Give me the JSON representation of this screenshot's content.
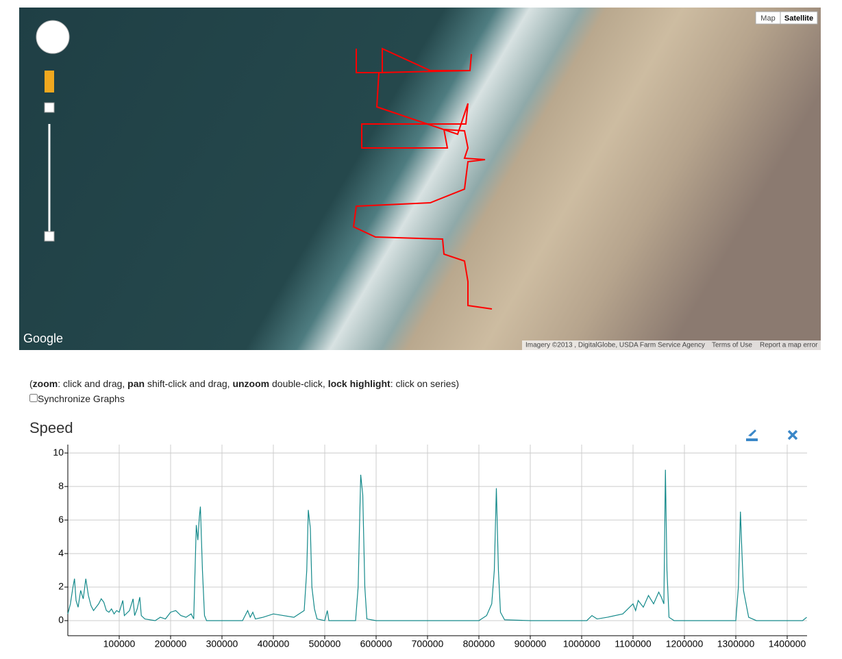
{
  "map": {
    "buttons": [
      "Map",
      "Satellite"
    ],
    "logo": "Google",
    "attribution": "Imagery ©2013 , DigitalGlobe, USDA Farm Service Agency",
    "links": [
      "Terms of Use",
      "Report a map error"
    ]
  },
  "instructions": [
    {
      "text": "(",
      "bold": false
    },
    {
      "text": "zoom",
      "bold": true
    },
    {
      "text": ": click and drag, ",
      "bold": false
    },
    {
      "text": "pan",
      "bold": true
    },
    {
      "text": " shift-click and drag, ",
      "bold": false
    },
    {
      "text": "unzoom",
      "bold": true
    },
    {
      "text": " double-click, ",
      "bold": false
    },
    {
      "text": "lock highlight",
      "bold": true
    },
    {
      "text": ": click on series)",
      "bold": false
    }
  ],
  "sync_label": "Synchronize Graphs",
  "chart_data": {
    "type": "line",
    "title": "Speed",
    "color": "#13898a",
    "grid": true,
    "x": [
      0,
      5000,
      10000,
      13000,
      16000,
      20000,
      25000,
      30000,
      35000,
      40000,
      45000,
      50000,
      55000,
      60000,
      65000,
      70000,
      75000,
      80000,
      85000,
      90000,
      95000,
      100000,
      107000,
      110000,
      120000,
      127000,
      130000,
      135000,
      140000,
      143000,
      150000,
      170000,
      180000,
      190000,
      200000,
      210000,
      220000,
      230000,
      240000,
      245000,
      250000,
      253000,
      256000,
      258000,
      262000,
      266000,
      270000,
      340000,
      350000,
      355000,
      360000,
      365000,
      380000,
      400000,
      440000,
      460000,
      465000,
      468000,
      472000,
      475000,
      480000,
      485000,
      500000,
      505000,
      508000,
      560000,
      565000,
      570000,
      574000,
      578000,
      582000,
      600000,
      800000,
      815000,
      825000,
      830000,
      834000,
      838000,
      842000,
      850000,
      900000,
      1010000,
      1020000,
      1030000,
      1050000,
      1080000,
      1100000,
      1105000,
      1110000,
      1120000,
      1130000,
      1140000,
      1150000,
      1155000,
      1160000,
      1163000,
      1166000,
      1170000,
      1180000,
      1300000,
      1305000,
      1309000,
      1312000,
      1315000,
      1320000,
      1325000,
      1340000,
      1430000,
      1438000
    ],
    "values": [
      0.4,
      1.0,
      2.0,
      2.5,
      1.2,
      0.8,
      1.8,
      1.3,
      2.5,
      1.5,
      0.9,
      0.6,
      0.8,
      1.0,
      1.3,
      1.1,
      0.6,
      0.5,
      0.7,
      0.4,
      0.6,
      0.5,
      1.2,
      0.3,
      0.6,
      1.3,
      0.3,
      0.7,
      1.4,
      0.3,
      0.1,
      0,
      0.2,
      0.1,
      0.5,
      0.6,
      0.3,
      0.2,
      0.4,
      0.1,
      5.7,
      4.8,
      6.2,
      6.8,
      3.0,
      0.3,
      0,
      0,
      0.6,
      0.2,
      0.5,
      0.1,
      0.2,
      0.4,
      0.2,
      0.6,
      3.0,
      6.6,
      5.5,
      2.0,
      0.7,
      0.1,
      0,
      0.6,
      0,
      0,
      2.0,
      8.7,
      7.5,
      2.0,
      0.1,
      0,
      0,
      0.3,
      1.0,
      3.0,
      7.9,
      3.0,
      0.5,
      0.05,
      0,
      0,
      0.3,
      0.1,
      0.2,
      0.4,
      1.0,
      0.6,
      1.2,
      0.8,
      1.5,
      1.0,
      1.7,
      1.4,
      1.0,
      9.0,
      3.0,
      0.2,
      0,
      0,
      2.0,
      6.5,
      4.0,
      1.8,
      1.0,
      0.2,
      0,
      0,
      0.2
    ],
    "xlim": [
      0,
      1438667
    ],
    "ylim": [
      -0.9,
      10.5
    ],
    "xticks": [
      100000,
      200000,
      300000,
      400000,
      500000,
      600000,
      700000,
      800000,
      900000,
      1000000,
      1100000,
      1200000,
      1300000,
      1400000
    ],
    "yticks": [
      0,
      2,
      4,
      6,
      8,
      10
    ]
  }
}
